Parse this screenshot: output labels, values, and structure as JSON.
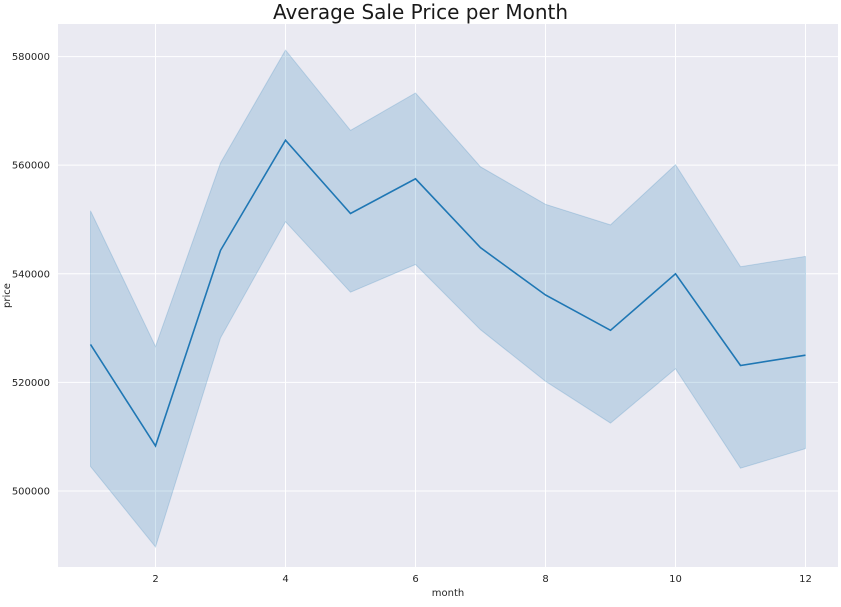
{
  "chart_data": {
    "type": "line",
    "title": "Average Sale Price per Month",
    "xlabel": "month",
    "ylabel": "price",
    "xlim": [
      0.5,
      12.5
    ],
    "ylim": [
      486000,
      586000
    ],
    "xticks": [
      2,
      4,
      6,
      8,
      10,
      12
    ],
    "xtick_labels": [
      "2",
      "4",
      "6",
      "8",
      "10",
      "12"
    ],
    "yticks": [
      500000,
      520000,
      540000,
      560000,
      580000
    ],
    "ytick_labels": [
      "500000",
      "520000",
      "540000",
      "560000",
      "580000"
    ],
    "grid": true,
    "x": [
      1,
      2,
      3,
      4,
      5,
      6,
      7,
      8,
      9,
      10,
      11,
      12
    ],
    "series": [
      {
        "values": [
          527000,
          508300,
          544300,
          564600,
          551100,
          557500,
          544800,
          536100,
          529600,
          540000,
          523100,
          525000
        ],
        "ci_lower": [
          504500,
          489700,
          528200,
          549600,
          536600,
          541700,
          529700,
          520200,
          512500,
          522500,
          504200,
          507800
        ],
        "ci_upper": [
          551600,
          526600,
          560400,
          581200,
          566400,
          573300,
          559700,
          552800,
          549000,
          560100,
          541300,
          543200
        ]
      }
    ],
    "colors": {
      "line": "#1f77b4",
      "band": "#1f77b4",
      "background": "#eaeaf2",
      "grid": "#ffffff"
    }
  }
}
